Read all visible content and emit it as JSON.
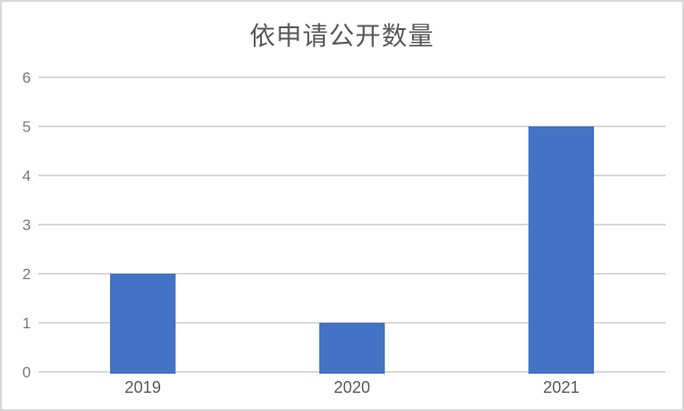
{
  "chart_data": {
    "type": "bar",
    "title": "依申请公开数量",
    "categories": [
      "2019",
      "2020",
      "2021"
    ],
    "values": [
      2,
      1,
      5
    ],
    "yticks": [
      "0",
      "1",
      "2",
      "3",
      "4",
      "5",
      "6"
    ],
    "ylim": [
      0,
      6
    ],
    "xlabel": "",
    "ylabel": "",
    "grid": true,
    "legend_position": "none",
    "colors": {
      "bar": "#4472C4",
      "gridline": "#D9D9D9",
      "frame_border": "#D9D9D9",
      "title_text": "#595959",
      "y_tick_text": "#7A7A7A",
      "x_tick_text": "#595959",
      "background": "#FFFFFF"
    }
  }
}
